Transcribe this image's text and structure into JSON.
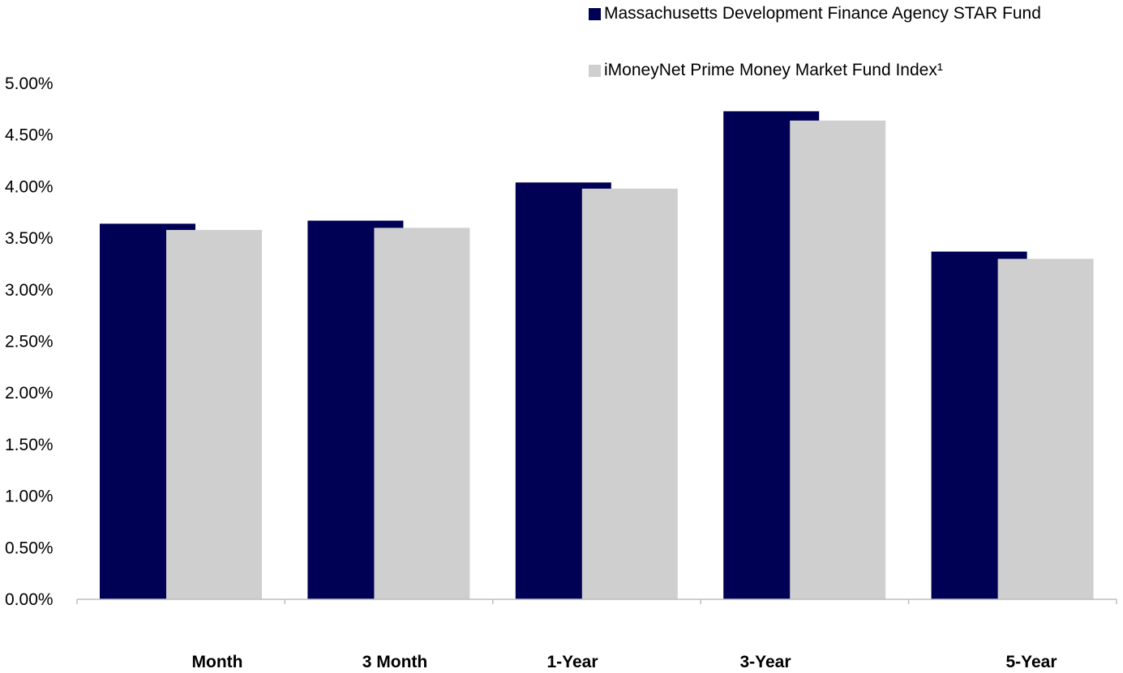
{
  "chart_data": {
    "type": "bar",
    "categories": [
      "Month",
      "3 Month",
      "1-Year",
      "3-Year",
      "5-Year"
    ],
    "series": [
      {
        "name": "Massachusetts Development Finance Agency STAR Fund",
        "color": "#000055",
        "values": [
          3.64,
          3.67,
          4.04,
          4.73,
          3.37
        ]
      },
      {
        "name": "iMoneyNet Prime Money Market Fund Index¹",
        "color": "#cfcfcf",
        "values": [
          3.58,
          3.6,
          3.98,
          4.64,
          3.3
        ]
      }
    ],
    "y_ticks": [
      "0.00%",
      "0.50%",
      "1.00%",
      "1.50%",
      "2.00%",
      "2.50%",
      "3.00%",
      "3.50%",
      "4.00%",
      "4.50%",
      "5.00%"
    ],
    "ylim": [
      0,
      5
    ],
    "y_unit": "%",
    "grid": false,
    "legend_position": "top-right"
  }
}
